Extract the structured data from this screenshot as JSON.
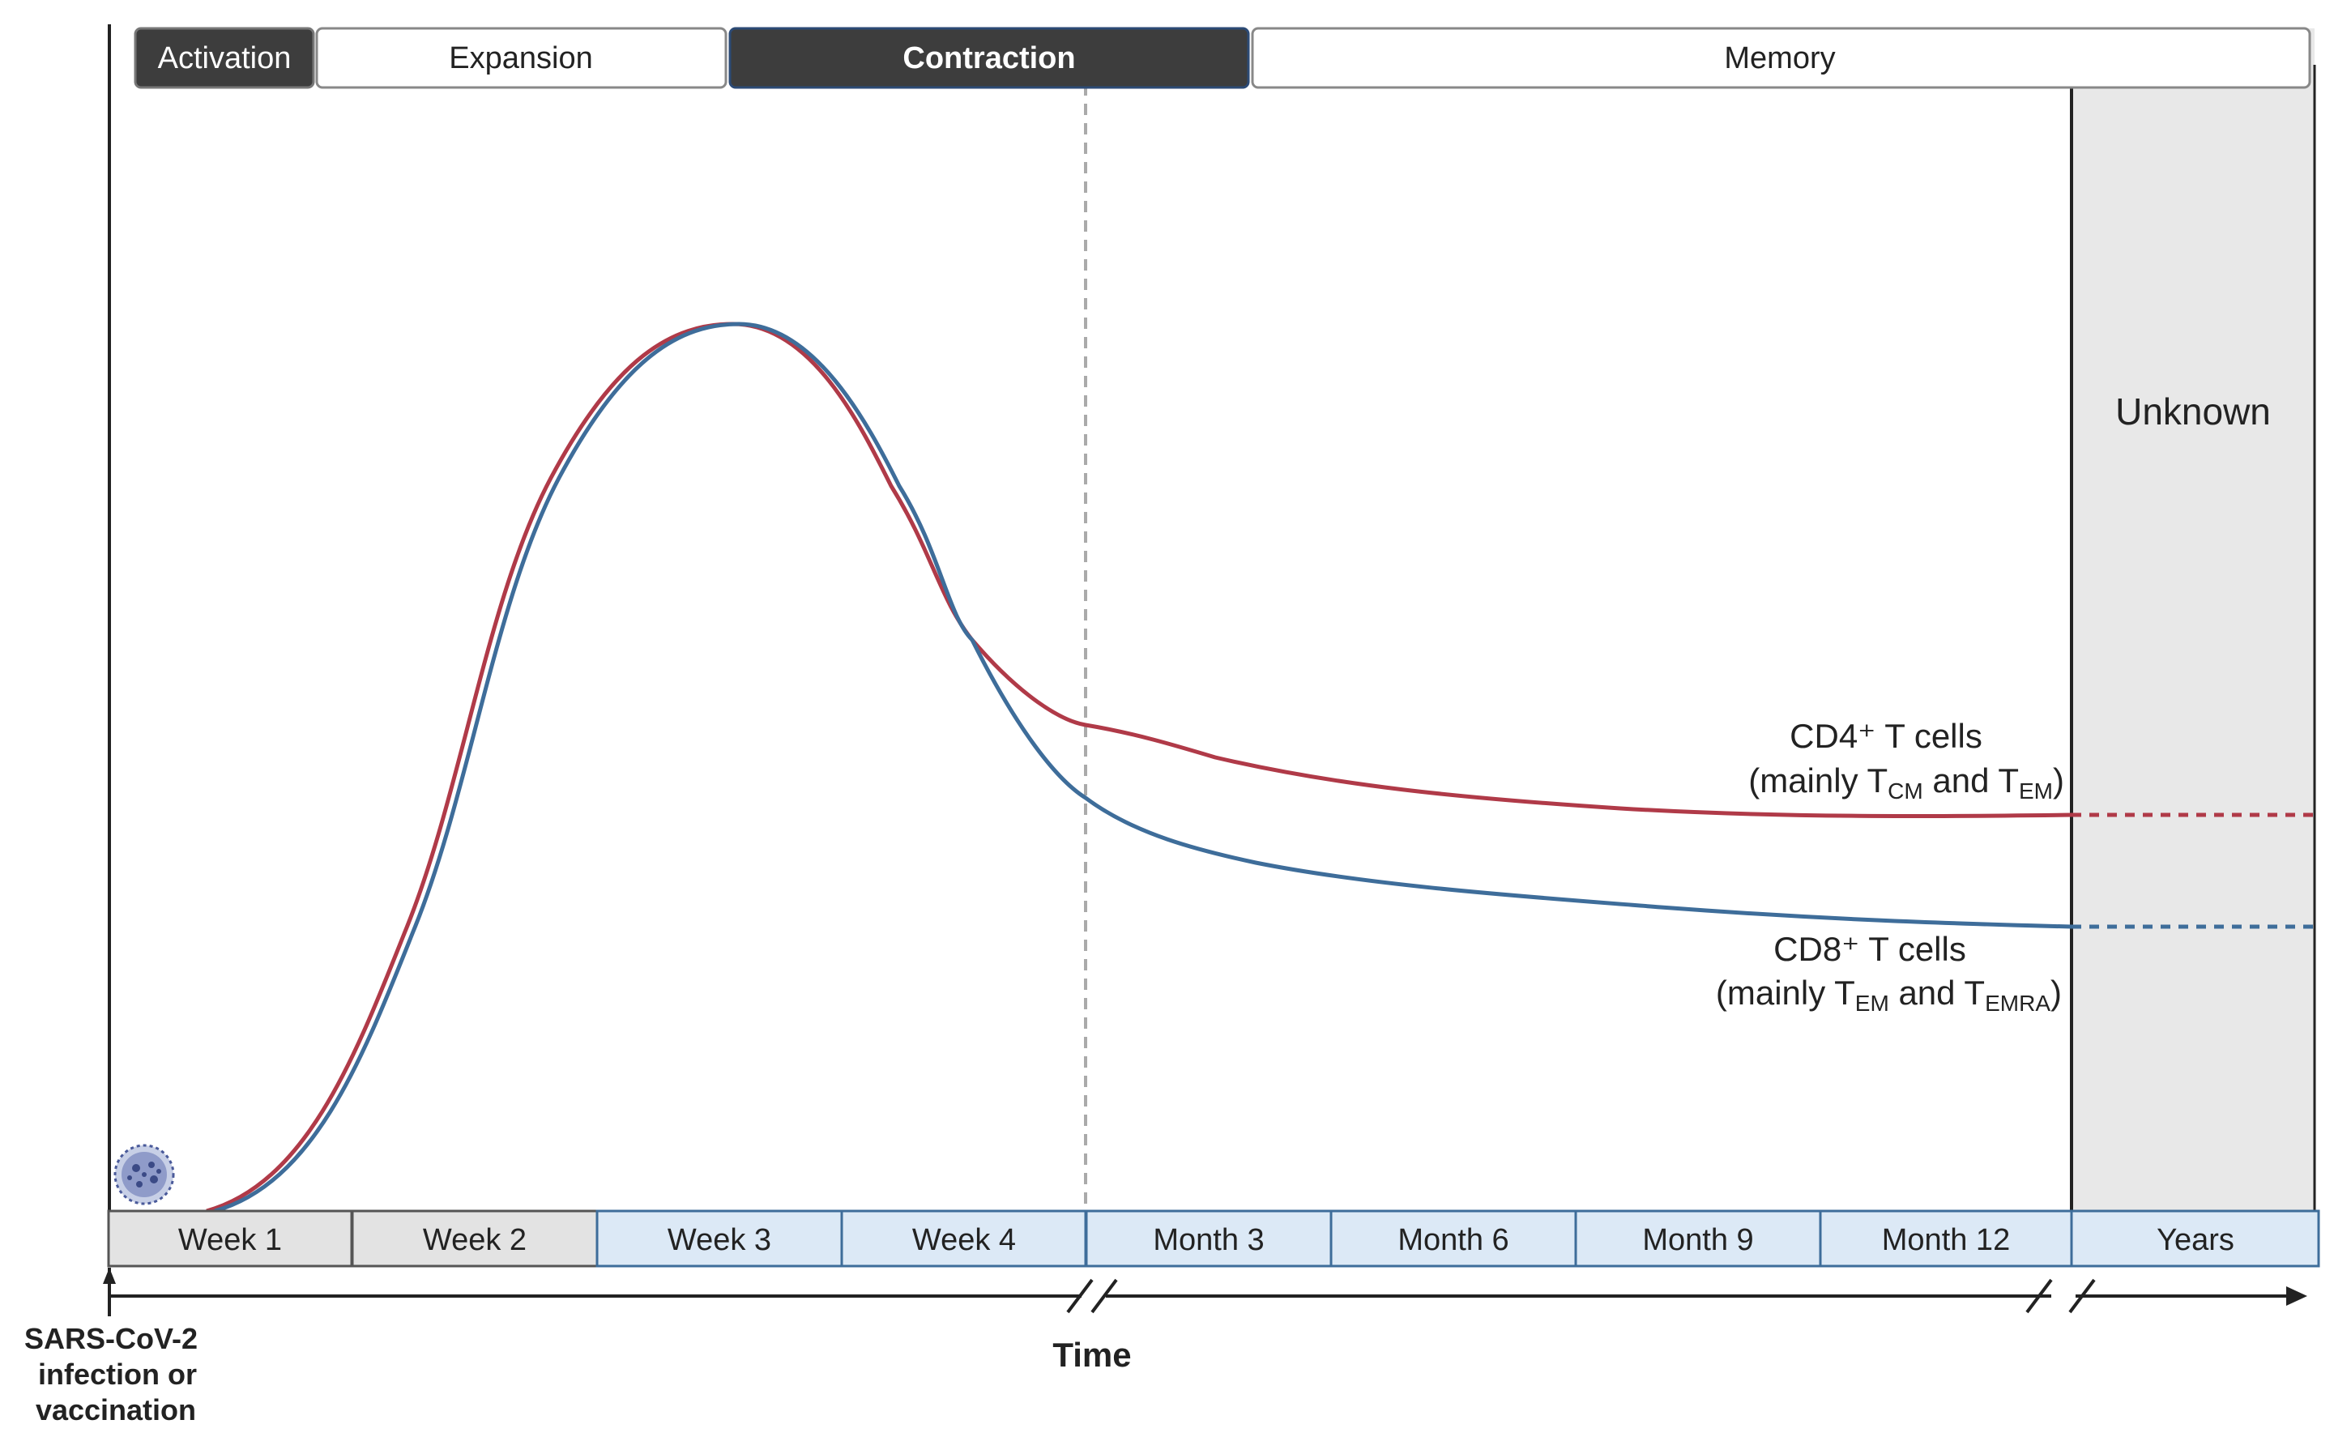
{
  "phases": [
    {
      "label": "Activation",
      "style": "dark"
    },
    {
      "label": "Expansion",
      "style": "light"
    },
    {
      "label": "Contraction",
      "style": "dark"
    },
    {
      "label": "Memory",
      "style": "light"
    },
    {
      "label": "",
      "style": "light"
    }
  ],
  "timeline": [
    {
      "label": "Week 1",
      "style": "gray"
    },
    {
      "label": "Week 2",
      "style": "gray"
    },
    {
      "label": "Week 3",
      "style": "blue"
    },
    {
      "label": "Week 4",
      "style": "blue"
    },
    {
      "label": "Month 3",
      "style": "blue"
    },
    {
      "label": "Month 6",
      "style": "blue"
    },
    {
      "label": "Month 9",
      "style": "blue"
    },
    {
      "label": "Month 12",
      "style": "blue"
    },
    {
      "label": "Years",
      "style": "blue"
    }
  ],
  "unknown_label": "Unknown",
  "axis": {
    "label": "Time",
    "origin_lines": [
      "SARS-CoV-2",
      "infection or",
      "vaccination"
    ]
  },
  "curves": {
    "cd4": {
      "line1": "CD4⁺ T cells",
      "line2_prefix": "(mainly T",
      "sub1": "CM",
      "mid": " and T",
      "sub2": "EM",
      "suffix": ")"
    },
    "cd8": {
      "line1": "CD8⁺ T cells",
      "line2_prefix": "(mainly T",
      "sub1": "EM",
      "mid": " and T",
      "sub2": "EMRA",
      "suffix": ")"
    }
  },
  "colors": {
    "cd4": "#b03a48",
    "cd8": "#3e6d9a",
    "dark_box": "#3d3d3d",
    "blue_box": "#dce9f6",
    "gray_box": "#e3e3e3",
    "unknown_bg": "#e8e8e8",
    "virus": "#4a5a9a"
  },
  "icons": [
    "virus-icon"
  ]
}
